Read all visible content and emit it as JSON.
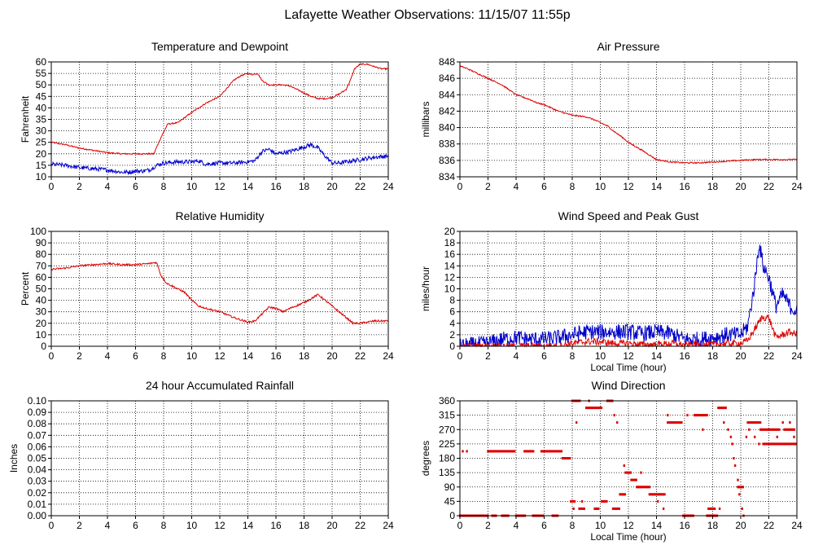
{
  "page_title": "Lafayette Weather Observations: 11/15/07 11:55p",
  "colors": {
    "red": "#dd0000",
    "blue": "#0000cc",
    "grid": "#000000"
  },
  "chart_data": [
    {
      "id": "temp",
      "type": "line",
      "title": "Temperature and Dewpoint",
      "ylabel": "Fahrenheit",
      "xlabel": "",
      "xlim": [
        0,
        24
      ],
      "ylim": [
        10,
        60
      ],
      "xticks": [
        0,
        2,
        4,
        6,
        8,
        10,
        12,
        14,
        16,
        18,
        20,
        22,
        24
      ],
      "yticks": [
        10,
        15,
        20,
        25,
        30,
        35,
        40,
        45,
        50,
        55,
        60
      ],
      "grid": true,
      "series": [
        {
          "color": "#dd0000",
          "noise": 0.3,
          "x": [
            0,
            1,
            2,
            3,
            4,
            5,
            6,
            7,
            7.3,
            7.8,
            8.3,
            9,
            10,
            11,
            12,
            12.5,
            13,
            13.5,
            14,
            14.3,
            14.7,
            15,
            15.5,
            16,
            16.5,
            17,
            17.5,
            18,
            18.5,
            19,
            19.5,
            20,
            20.5,
            21,
            21.3,
            21.6,
            22,
            22.5,
            23,
            23.5,
            24
          ],
          "y": [
            25,
            24,
            22.5,
            21.5,
            20.5,
            20,
            20,
            20,
            20,
            27,
            33,
            33.5,
            38,
            42,
            45,
            48.5,
            52,
            54,
            55,
            54.5,
            55,
            52,
            50,
            50,
            50,
            49.5,
            48,
            46.5,
            45,
            44,
            44,
            44.5,
            46,
            48,
            52,
            57,
            59,
            59,
            58,
            57,
            57
          ]
        },
        {
          "color": "#0000cc",
          "noise": 0.9,
          "x": [
            0,
            1,
            2,
            3,
            4,
            5,
            5.5,
            6,
            6.5,
            7,
            7.5,
            8,
            9,
            10,
            10.5,
            11,
            12,
            13,
            14,
            14.5,
            15,
            15.5,
            16,
            16.5,
            17,
            18,
            18.5,
            19,
            19.5,
            20,
            20.5,
            21,
            22,
            23,
            24
          ],
          "y": [
            15.5,
            15,
            14,
            13.5,
            13,
            12,
            12,
            12.5,
            12.5,
            13,
            15,
            16,
            16.5,
            16.5,
            17,
            15.5,
            16,
            16,
            16.5,
            17,
            21,
            22,
            20,
            20.5,
            21,
            23,
            24,
            22.5,
            19,
            16,
            16,
            16.5,
            17.5,
            18.5,
            19
          ]
        }
      ]
    },
    {
      "id": "pressure",
      "type": "line",
      "title": "Air Pressure",
      "ylabel": "millibars",
      "xlabel": "",
      "xlim": [
        0,
        24
      ],
      "ylim": [
        834,
        848
      ],
      "xticks": [
        0,
        2,
        4,
        6,
        8,
        10,
        12,
        14,
        16,
        18,
        20,
        22,
        24
      ],
      "yticks": [
        834,
        836,
        838,
        840,
        842,
        844,
        846,
        848
      ],
      "grid": true,
      "series": [
        {
          "color": "#dd0000",
          "noise": 0.08,
          "x": [
            0,
            0.5,
            1,
            2,
            3,
            4,
            5,
            5.5,
            6,
            7,
            8,
            9,
            9.5,
            10,
            10.5,
            11,
            11.5,
            12,
            13,
            14,
            15,
            16,
            17,
            18,
            19,
            20,
            21,
            22,
            23,
            24
          ],
          "y": [
            847.5,
            847.2,
            846.8,
            846,
            845.2,
            844,
            843.4,
            843,
            842.8,
            842,
            841.5,
            841.3,
            841,
            840.6,
            840.2,
            839.5,
            838.9,
            838.2,
            837.2,
            836.1,
            835.8,
            835.7,
            835.7,
            835.8,
            835.9,
            836,
            836.1,
            836.1,
            836.1,
            836.1
          ]
        }
      ]
    },
    {
      "id": "humidity",
      "type": "line",
      "title": "Relative Humidity",
      "ylabel": "Percent",
      "xlabel": "",
      "xlim": [
        0,
        24
      ],
      "ylim": [
        0,
        100
      ],
      "xticks": [
        0,
        2,
        4,
        6,
        8,
        10,
        12,
        14,
        16,
        18,
        20,
        22,
        24
      ],
      "yticks": [
        0,
        10,
        20,
        30,
        40,
        50,
        60,
        70,
        80,
        90,
        100
      ],
      "grid": true,
      "series": [
        {
          "color": "#dd0000",
          "noise": 0.8,
          "x": [
            0,
            1,
            2,
            3,
            4,
            5,
            6,
            7,
            7.5,
            7.8,
            8.2,
            9,
            9.5,
            10,
            10.5,
            11,
            12,
            13,
            14,
            14.5,
            15,
            15.5,
            16,
            16.5,
            17,
            18,
            19,
            19.5,
            20,
            20.5,
            21,
            21.5,
            22,
            23,
            24
          ],
          "y": [
            67,
            68,
            70,
            71,
            72,
            71,
            71,
            72,
            73,
            62,
            55,
            50,
            47,
            40,
            35,
            33,
            30,
            25,
            21,
            22,
            28,
            34,
            33,
            30,
            33,
            38,
            45,
            40,
            35,
            30,
            25,
            20,
            20,
            22,
            22
          ]
        }
      ]
    },
    {
      "id": "wind",
      "type": "line",
      "title": "Wind Speed and Peak Gust",
      "ylabel": "miles/hour",
      "xlabel": "Local Time (hour)",
      "xlim": [
        0,
        24
      ],
      "ylim": [
        0,
        20
      ],
      "xticks": [
        0,
        2,
        4,
        6,
        8,
        10,
        12,
        14,
        16,
        18,
        20,
        22,
        24
      ],
      "yticks": [
        0,
        2,
        4,
        6,
        8,
        10,
        12,
        14,
        16,
        18,
        20
      ],
      "grid": true,
      "series": [
        {
          "color": "#0000cc",
          "noise": 1.4,
          "clip": [
            0,
            20
          ],
          "x": [
            0,
            2,
            3,
            4,
            5,
            6,
            7,
            8,
            9,
            10,
            11,
            12,
            13,
            14,
            15,
            16,
            17,
            18,
            19,
            20,
            20.5,
            21,
            21.3,
            21.6,
            22,
            22.5,
            23,
            23.5,
            24
          ],
          "y": [
            0,
            0.5,
            1.2,
            1.5,
            1.2,
            1.2,
            1.5,
            2,
            2.5,
            2.5,
            2.5,
            2.5,
            2.2,
            2.5,
            2.2,
            1.2,
            1.2,
            1.5,
            2,
            2,
            3.5,
            11,
            18,
            14,
            12,
            7,
            9,
            7,
            6
          ]
        },
        {
          "color": "#dd0000",
          "noise": 0.6,
          "clip": [
            0,
            20
          ],
          "x": [
            0,
            2,
            7,
            7.5,
            8,
            9,
            10,
            11,
            12,
            13,
            14,
            15,
            16,
            17,
            18,
            19,
            20,
            20.5,
            21,
            21.5,
            22,
            22.5,
            23,
            23.5,
            24
          ],
          "y": [
            0,
            0,
            0,
            0.3,
            0.5,
            0.8,
            0.8,
            0.5,
            0.5,
            0.3,
            0.3,
            0.5,
            0.2,
            0.3,
            0.3,
            0.5,
            0.5,
            1,
            3,
            5,
            5,
            1.5,
            2,
            2.5,
            2
          ]
        }
      ]
    },
    {
      "id": "rain",
      "type": "line",
      "title": "24 hour Accumulated Rainfall",
      "ylabel": "Inches",
      "xlabel": "",
      "xlim": [
        0,
        24
      ],
      "ylim": [
        0,
        0.1
      ],
      "xticks": [
        0,
        2,
        4,
        6,
        8,
        10,
        12,
        14,
        16,
        18,
        20,
        22,
        24
      ],
      "yticks": [
        0,
        0.01,
        0.02,
        0.03,
        0.04,
        0.05,
        0.06,
        0.07,
        0.08,
        0.09,
        0.1
      ],
      "ytick_labels": [
        "0.00",
        "0.01",
        "0.02",
        "0.03",
        "0.04",
        "0.05",
        "0.06",
        "0.07",
        "0.08",
        "0.09",
        "0.10"
      ],
      "grid": true,
      "series": [
        {
          "color": "#dd0000",
          "noise": 0,
          "x": [
            0,
            24
          ],
          "y": [
            0,
            0
          ]
        }
      ]
    },
    {
      "id": "direction",
      "type": "scatter",
      "title": "Wind Direction",
      "ylabel": "degrees",
      "xlabel": "Local Time (hour)",
      "xlim": [
        0,
        24
      ],
      "ylim": [
        0,
        360
      ],
      "xticks": [
        0,
        2,
        4,
        6,
        8,
        10,
        12,
        14,
        16,
        18,
        20,
        22,
        24
      ],
      "yticks": [
        0,
        45,
        90,
        135,
        180,
        225,
        270,
        315,
        360
      ],
      "grid": true,
      "segments": [
        {
          "x0": 0,
          "x1": 2.0,
          "y": 0
        },
        {
          "x0": 2.0,
          "x1": 3.9,
          "y": 202
        },
        {
          "x0": 2.3,
          "x1": 2.6,
          "y": 0
        },
        {
          "x0": 3.0,
          "x1": 3.5,
          "y": 0
        },
        {
          "x0": 4.0,
          "x1": 4.7,
          "y": 0
        },
        {
          "x0": 4.6,
          "x1": 5.3,
          "y": 202
        },
        {
          "x0": 5.2,
          "x1": 6.0,
          "y": 0
        },
        {
          "x0": 5.8,
          "x1": 7.3,
          "y": 202
        },
        {
          "x0": 6.6,
          "x1": 7.0,
          "y": 0
        },
        {
          "x0": 7.3,
          "x1": 7.9,
          "y": 180
        },
        {
          "x0": 7.9,
          "x1": 8.2,
          "y": 45
        },
        {
          "x0": 8.0,
          "x1": 8.6,
          "y": 360
        },
        {
          "x0": 8.5,
          "x1": 8.9,
          "y": 22
        },
        {
          "x0": 9.0,
          "x1": 10.1,
          "y": 338
        },
        {
          "x0": 9.6,
          "x1": 9.9,
          "y": 22
        },
        {
          "x0": 10.1,
          "x1": 10.5,
          "y": 45
        },
        {
          "x0": 10.5,
          "x1": 10.9,
          "y": 360
        },
        {
          "x0": 10.9,
          "x1": 11.4,
          "y": 22
        },
        {
          "x0": 11.4,
          "x1": 11.8,
          "y": 67
        },
        {
          "x0": 11.8,
          "x1": 12.2,
          "y": 135
        },
        {
          "x0": 12.2,
          "x1": 12.6,
          "y": 112
        },
        {
          "x0": 12.6,
          "x1": 13.5,
          "y": 90
        },
        {
          "x0": 13.5,
          "x1": 14.6,
          "y": 67
        },
        {
          "x0": 14.8,
          "x1": 15.8,
          "y": 292
        },
        {
          "x0": 15.9,
          "x1": 16.7,
          "y": 0
        },
        {
          "x0": 16.7,
          "x1": 17.6,
          "y": 315
        },
        {
          "x0": 17.6,
          "x1": 18.4,
          "y": 0
        },
        {
          "x0": 17.7,
          "x1": 18.2,
          "y": 22
        },
        {
          "x0": 18.4,
          "x1": 19.0,
          "y": 338
        },
        {
          "x0": 19.8,
          "x1": 20.2,
          "y": 90
        },
        {
          "x0": 20.5,
          "x1": 21.4,
          "y": 292
        },
        {
          "x0": 21.4,
          "x1": 22.8,
          "y": 270
        },
        {
          "x0": 21.6,
          "x1": 24.0,
          "y": 225
        },
        {
          "x0": 23.1,
          "x1": 23.9,
          "y": 270
        }
      ],
      "points": [
        {
          "x": 0.2,
          "y": 202
        },
        {
          "x": 0.5,
          "y": 202
        },
        {
          "x": 8.1,
          "y": 22
        },
        {
          "x": 8.3,
          "y": 292
        },
        {
          "x": 8.7,
          "y": 45
        },
        {
          "x": 9.2,
          "y": 360
        },
        {
          "x": 11.0,
          "y": 315
        },
        {
          "x": 11.2,
          "y": 292
        },
        {
          "x": 11.7,
          "y": 157
        },
        {
          "x": 12.9,
          "y": 135
        },
        {
          "x": 14.1,
          "y": 45
        },
        {
          "x": 14.5,
          "y": 22
        },
        {
          "x": 14.8,
          "y": 315
        },
        {
          "x": 16.2,
          "y": 315
        },
        {
          "x": 17.3,
          "y": 270
        },
        {
          "x": 18.5,
          "y": 22
        },
        {
          "x": 18.8,
          "y": 292
        },
        {
          "x": 19.1,
          "y": 270
        },
        {
          "x": 19.3,
          "y": 247
        },
        {
          "x": 19.4,
          "y": 225
        },
        {
          "x": 19.5,
          "y": 180
        },
        {
          "x": 19.6,
          "y": 157
        },
        {
          "x": 19.8,
          "y": 112
        },
        {
          "x": 19.9,
          "y": 67
        },
        {
          "x": 20.1,
          "y": 22
        },
        {
          "x": 20.2,
          "y": 0
        },
        {
          "x": 20.4,
          "y": 247
        },
        {
          "x": 20.6,
          "y": 270
        },
        {
          "x": 21.0,
          "y": 247
        },
        {
          "x": 21.3,
          "y": 225
        },
        {
          "x": 22.6,
          "y": 247
        },
        {
          "x": 23.0,
          "y": 292
        },
        {
          "x": 23.5,
          "y": 292
        },
        {
          "x": 23.8,
          "y": 247
        }
      ]
    }
  ]
}
